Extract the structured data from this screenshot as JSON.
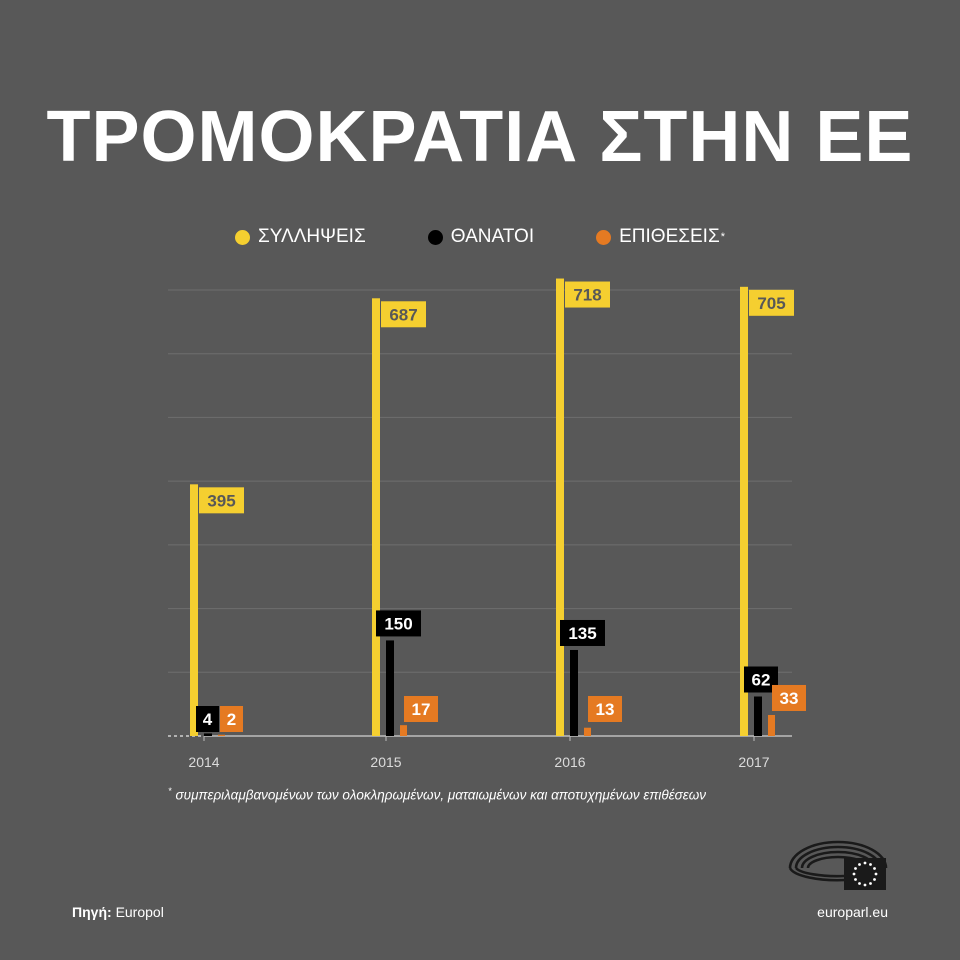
{
  "title": "ΤΡΟΜΟΚΡΑΤΙΑ ΣΤΗΝ ΕΕ",
  "legend": [
    {
      "label": "ΣΥΛΛΗΨΕΙΣ",
      "color": "#f5cf30",
      "sup": ""
    },
    {
      "label": "ΘΑΝΑΤΟΙ",
      "color": "#000000",
      "sup": ""
    },
    {
      "label": "ΕΠΙΘΕΣΕΙΣ",
      "color": "#e57a22",
      "sup": "*"
    }
  ],
  "chart_data": {
    "type": "bar",
    "categories": [
      "2014",
      "2015",
      "2016",
      "2017"
    ],
    "series": [
      {
        "name": "ΣΥΛΛΗΨΕΙΣ",
        "color": "#f5cf30",
        "values": [
          395,
          687,
          718,
          705
        ]
      },
      {
        "name": "ΘΑΝΑΤΟΙ",
        "color": "#000000",
        "values": [
          4,
          150,
          135,
          62
        ]
      },
      {
        "name": "ΕΠΙΘΕΣΕΙΣ",
        "color": "#e57a22",
        "values": [
          2,
          17,
          13,
          33
        ]
      }
    ],
    "ylim": [
      0,
      700
    ],
    "grid": true,
    "legend_position": "top"
  },
  "footnote": {
    "mark": "*",
    "text": "συμπεριλαμβανομένων των ολοκληρωμένων, ματαιωμένων και αποτυχημένων επιθέσεων"
  },
  "source": {
    "label": "Πηγή:",
    "value": "Europol"
  },
  "site": "europarl.eu"
}
